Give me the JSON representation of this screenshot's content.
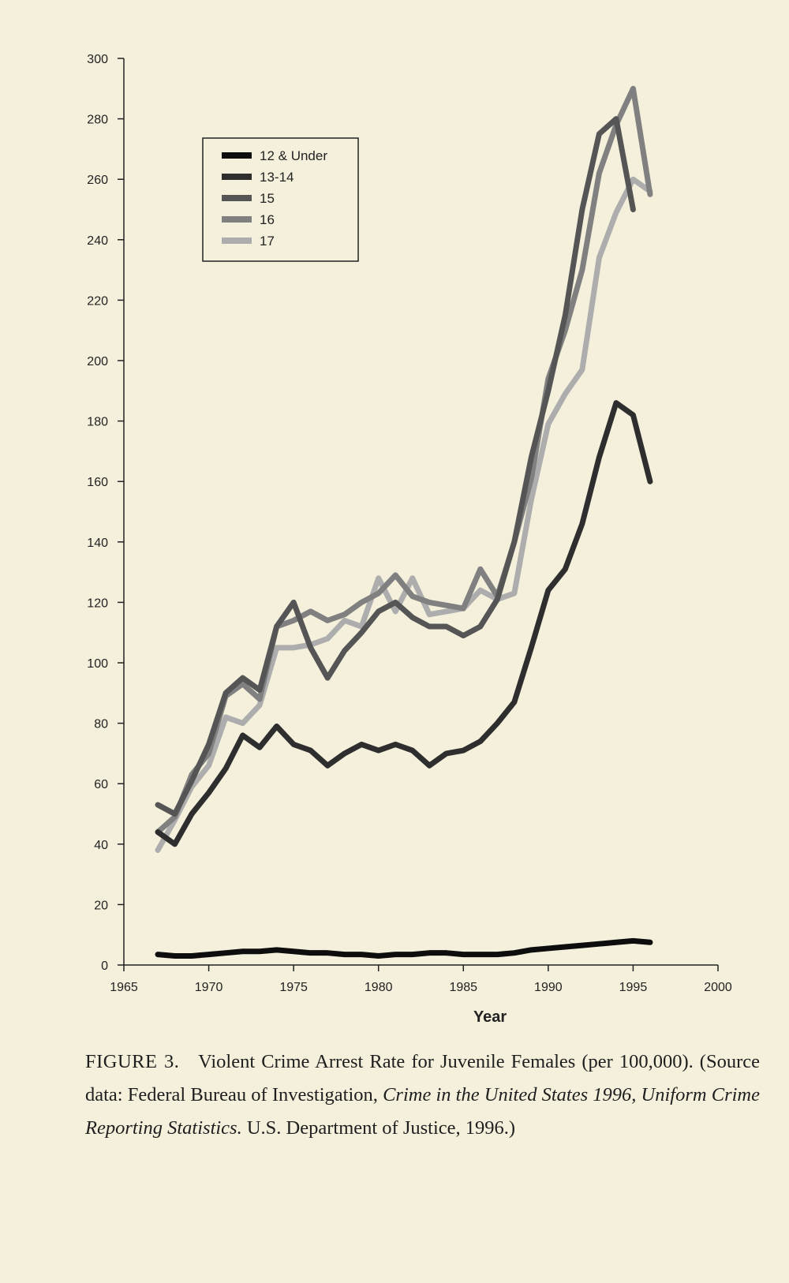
{
  "chart_data": {
    "type": "line",
    "title": "",
    "xlabel": "Year",
    "ylabel": "",
    "xlim": [
      1965,
      2000
    ],
    "ylim": [
      0,
      300
    ],
    "x_ticks": [
      "1965",
      "1970",
      "1975",
      "1980",
      "1985",
      "1990",
      "1995",
      "2000"
    ],
    "y_ticks": [
      "0",
      "20",
      "40",
      "60",
      "80",
      "100",
      "120",
      "140",
      "160",
      "180",
      "200",
      "220",
      "240",
      "260",
      "280",
      "300"
    ],
    "grid": false,
    "legend_position": "top-left",
    "x": [
      1967,
      1968,
      1969,
      1970,
      1971,
      1972,
      1973,
      1974,
      1975,
      1976,
      1977,
      1978,
      1979,
      1980,
      1981,
      1982,
      1983,
      1984,
      1985,
      1986,
      1987,
      1988,
      1989,
      1990,
      1991,
      1992,
      1993,
      1994,
      1995,
      1996
    ],
    "series": [
      {
        "name": "12 & Under",
        "color": "#0d0d0d",
        "values": [
          3.5,
          3,
          3,
          3.5,
          4,
          4.5,
          4.5,
          5,
          4.5,
          4,
          4,
          3.5,
          3.5,
          3,
          3.5,
          3.5,
          4,
          4,
          3.5,
          3.5,
          3.5,
          4,
          5,
          5.5,
          6,
          6.5,
          7,
          7.5,
          8,
          7.5
        ]
      },
      {
        "name": "13-14",
        "color": "#2e2e2e",
        "values": [
          44,
          40,
          50,
          57,
          65,
          76,
          72,
          79,
          73,
          71,
          66,
          70,
          73,
          71,
          73,
          71,
          66,
          70,
          71,
          74,
          80,
          87,
          105,
          124,
          131,
          146,
          168,
          186,
          182,
          160
        ]
      },
      {
        "name": "15",
        "color": "#555555",
        "values": [
          53,
          50,
          61,
          73,
          90,
          95,
          91,
          112,
          120,
          105,
          95,
          104,
          110,
          117,
          120,
          115,
          112,
          112,
          109,
          112,
          121,
          140,
          168,
          190,
          215,
          250,
          275,
          280,
          250,
          null
        ]
      },
      {
        "name": "16",
        "color": "#808080",
        "values": [
          44,
          49,
          63,
          70,
          89,
          93,
          88,
          112,
          114,
          117,
          114,
          116,
          120,
          123,
          129,
          122,
          120,
          119,
          118,
          131,
          122,
          140,
          161,
          194,
          210,
          230,
          262,
          278,
          290,
          255
        ]
      },
      {
        "name": "17",
        "color": "#adadad",
        "values": [
          38,
          48,
          59,
          66,
          82,
          80,
          86,
          105,
          105,
          106,
          108,
          114,
          112,
          128,
          117,
          128,
          116,
          117,
          118,
          124,
          121,
          123,
          154,
          179,
          189,
          197,
          234,
          249,
          260,
          256
        ]
      }
    ]
  },
  "caption": {
    "label": "FIGURE 3.",
    "text1": "Violent Crime Arrest Rate for Juvenile Females (per 100,000). (Source data: Federal Bureau of Investigation,",
    "italic1": "Crime in the United States 1996, Uniform Crime Reporting Statistics.",
    "text2": "U.S. Department of Justice, 1996.)"
  }
}
